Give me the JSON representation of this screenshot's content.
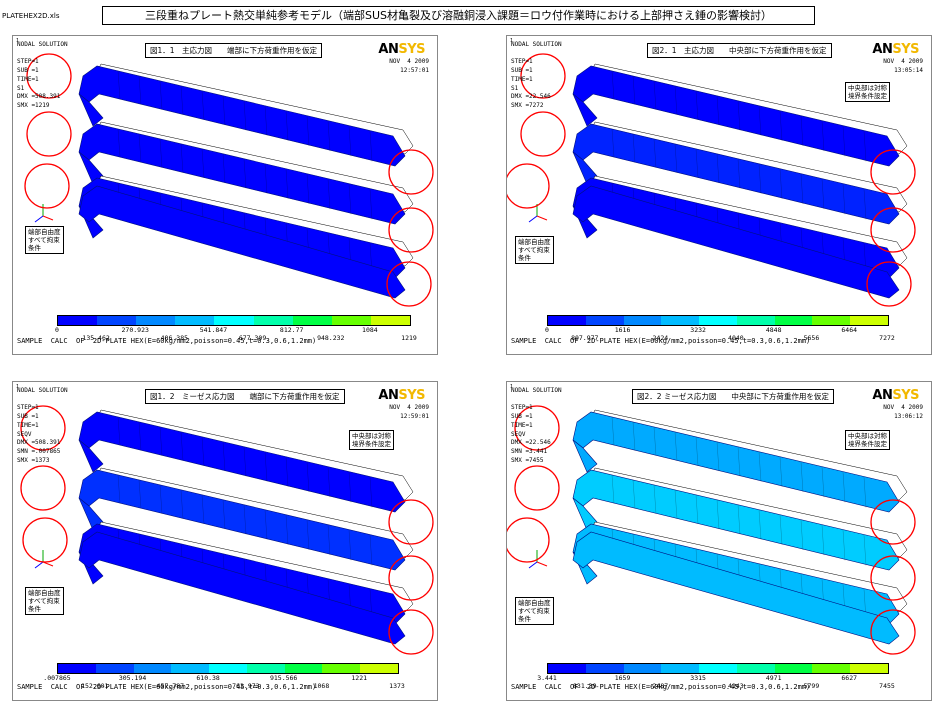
{
  "file_label": "PLATEHEX2D.xls",
  "title": "三段重ねプレート熱交単純参考モデル（端部SUS材亀裂及び溶融銅浸入課題＝ロウ付作業時における上部押さえ錘の影響検討）",
  "logo": {
    "an": "AN",
    "sys": "SYS"
  },
  "footer": "SAMPLE  CALC  OF  2D-PLATE HEX(E=60kg/mm2,poisson=0.45,t=0.3,0.6,1.2mm)",
  "colors": {
    "contour": [
      "#0000ff",
      "#0044ff",
      "#0088ff",
      "#00bbff",
      "#00ffff",
      "#00ffaa",
      "#00ff44",
      "#66ff00",
      "#ccff00",
      "#ffdd00",
      "#ff8800",
      "#ff0000"
    ],
    "circle": "#ff0000"
  },
  "panels": [
    {
      "num": "1",
      "caption": "図1．1　主応力図　　端部に下方荷重作用を仮定",
      "info": "NODAL SOLUTION\n\nSTEP=1\nSUB =1\nTIME=1\nS1\nDMX =508.391\nSMX =1219",
      "date": "NOV  4 2009\n12:57:01",
      "note_left": "端部自由度\nすべて拘束\n条件",
      "note_right": "",
      "labels_top": [
        "0",
        "270.923",
        "541.847",
        "812.77",
        "1084"
      ],
      "labels_bottom": [
        "135.462",
        "406.385",
        "677.309",
        "948.232",
        "1219"
      ]
    },
    {
      "num": "1",
      "caption": "図2．1　主応力図　　中央部に下方荷重作用を仮定",
      "info": "NODAL SOLUTION\n\nSTEP=1\nSUB =1\nTIME=1\nS1\nDMX =22.546\nSMX =7272",
      "date": "NOV  4 2009\n13:05:14",
      "note_left": "端部自由度\nすべて拘束\n条件",
      "note_right": "中央部は対称\n境界条件設定",
      "labels_top": [
        "0",
        "1616",
        "3232",
        "4848",
        "6464"
      ],
      "labels_bottom": [
        "807.977",
        "2424",
        "4040",
        "5656",
        "7272"
      ]
    },
    {
      "num": "1",
      "caption": "図1．2　ミーゼス応力図　　端部に下方荷重作用を仮定",
      "info": "NODAL SOLUTION\n\nSTEP=1\nSUB =1\nTIME=1\nSEQV\nDMX =508.391\nSMN =.007865\nSMX =1373",
      "date": "NOV  4 2009\n12:59:01",
      "note_left": "端部自由度\nすべて拘束\n条件",
      "note_right": "中央部は対称\n境界条件設定",
      "labels_top": [
        ".007865",
        "305.194",
        "610.38",
        "915.566",
        "1221"
      ],
      "labels_bottom": [
        "152.601",
        "457.787",
        "762.973",
        "1068",
        "1373"
      ]
    },
    {
      "num": "1",
      "caption": "図2．2 ミーゼス応力図　　中央部に下方荷重作用を仮定",
      "info": "NODAL SOLUTION\n\nSTEP=1\nSUB =1\nTIME=1\nSEQV\nDMX =22.546\nSMN =3.441\nSMX =7455",
      "date": "NOV  4 2009\n13:06:12",
      "note_left": "端部自由度\nすべて拘束\n条件",
      "note_right": "中央部は対称\n境界条件設定",
      "labels_top": [
        "3.441",
        "1659",
        "3315",
        "4971",
        "6627"
      ],
      "labels_bottom": [
        "831.39",
        "2487",
        "4143",
        "5799",
        "7455"
      ]
    }
  ]
}
